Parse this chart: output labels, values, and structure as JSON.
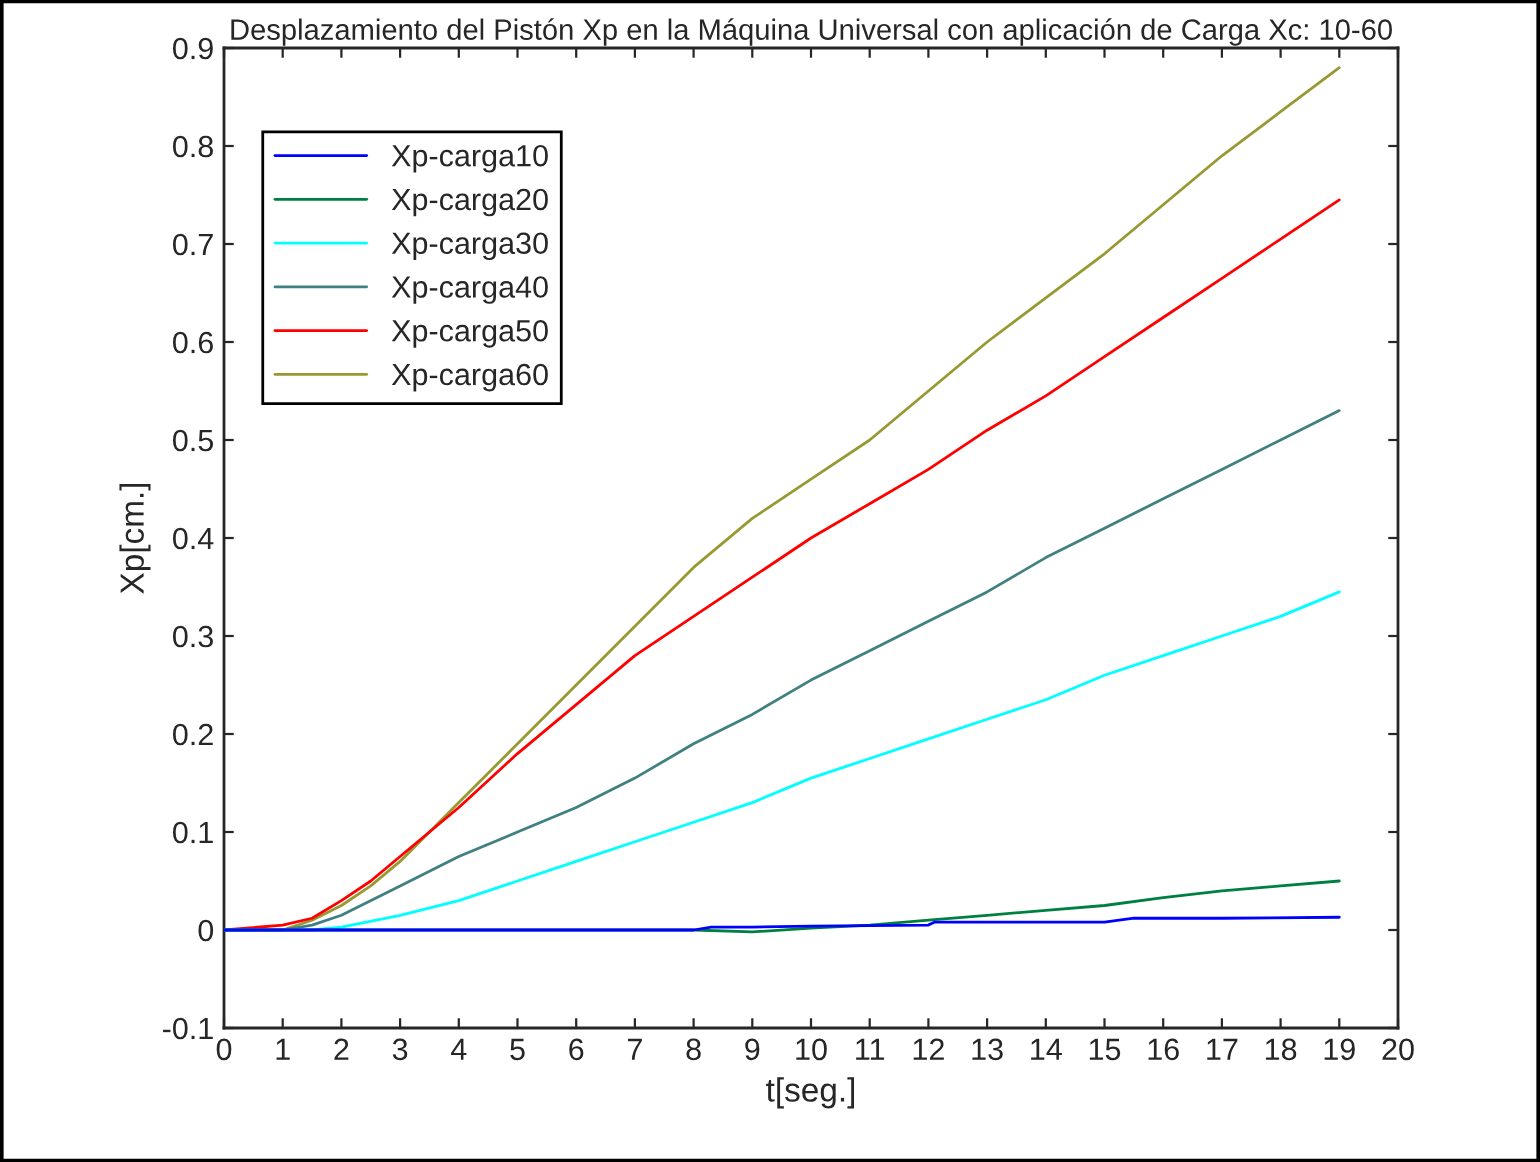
{
  "chart_data": {
    "type": "line",
    "title": "Desplazamiento del Pistón Xp en la Máquina Universal con aplicación de Carga Xc: 10-60",
    "xlabel": "t[seg.]",
    "ylabel": "Xp[cm.]",
    "xlim": [
      0,
      20
    ],
    "xticks": [
      0,
      1,
      2,
      3,
      4,
      5,
      6,
      7,
      8,
      9,
      10,
      11,
      12,
      13,
      14,
      15,
      16,
      17,
      18,
      19,
      20
    ],
    "ylim": [
      -0.1,
      0.9
    ],
    "yticks": [
      -0.1,
      0,
      0.1,
      0.2,
      0.3,
      0.4,
      0.5,
      0.6,
      0.7,
      0.8,
      0.9
    ],
    "grid": false,
    "legend": "top left",
    "marker": "none",
    "line_style": "solid",
    "series": [
      {
        "name": "Xp-carga10",
        "color": "#0000ff",
        "x": [
          0,
          2,
          4,
          6,
          8,
          8.3,
          9,
          10,
          12,
          12.1,
          15,
          15.5,
          17,
          19
        ],
        "values": [
          0,
          0,
          0,
          0,
          0,
          0.003,
          0.003,
          0.004,
          0.005,
          0.008,
          0.008,
          0.012,
          0.012,
          0.013
        ]
      },
      {
        "name": "Xp-carga20",
        "color": "#008040",
        "x": [
          0,
          2,
          4,
          6,
          8,
          9,
          10,
          11,
          12,
          13,
          14,
          15,
          16,
          17,
          18,
          19
        ],
        "values": [
          0,
          0,
          0,
          0,
          0,
          -0.002,
          0.002,
          0.005,
          0.01,
          0.015,
          0.02,
          0.025,
          0.033,
          0.04,
          0.045,
          0.05
        ]
      },
      {
        "name": "Xp-carga30",
        "color": "#00ffff",
        "x": [
          0,
          1,
          1.5,
          2,
          3,
          4,
          5,
          6,
          7,
          8,
          9,
          10,
          11,
          12,
          13,
          14,
          15,
          16,
          17,
          18,
          19
        ],
        "values": [
          0,
          0,
          0,
          0.003,
          0.015,
          0.03,
          0.05,
          0.07,
          0.09,
          0.11,
          0.13,
          0.155,
          0.175,
          0.195,
          0.215,
          0.235,
          0.26,
          0.28,
          0.3,
          0.32,
          0.345
        ]
      },
      {
        "name": "Xp-carga40",
        "color": "#408080",
        "x": [
          0,
          1,
          1.5,
          2,
          3,
          4,
          5,
          6,
          7,
          8,
          9,
          10,
          11,
          12,
          13,
          14,
          15,
          16,
          17,
          18,
          19
        ],
        "values": [
          0,
          0,
          0.005,
          0.015,
          0.045,
          0.075,
          0.1,
          0.125,
          0.155,
          0.19,
          0.22,
          0.255,
          0.285,
          0.315,
          0.345,
          0.38,
          0.41,
          0.44,
          0.47,
          0.5,
          0.53
        ]
      },
      {
        "name": "Xp-carga50",
        "color": "#ff0000",
        "x": [
          0,
          1,
          1.5,
          2,
          2.5,
          3,
          3.5,
          4,
          5,
          6,
          7,
          8,
          9,
          10,
          11,
          12,
          13,
          14,
          15,
          16,
          17,
          18,
          19
        ],
        "values": [
          0,
          0.005,
          0.012,
          0.03,
          0.05,
          0.075,
          0.1,
          0.125,
          0.18,
          0.23,
          0.28,
          0.32,
          0.36,
          0.4,
          0.435,
          0.47,
          0.51,
          0.545,
          0.585,
          0.625,
          0.665,
          0.705,
          0.745
        ]
      },
      {
        "name": "Xp-carga60",
        "color": "#999933",
        "x": [
          0,
          1,
          1.5,
          2,
          2.5,
          3,
          3.5,
          4,
          5,
          6,
          7,
          8,
          9,
          10,
          11,
          12,
          13,
          14,
          15,
          16,
          17,
          18,
          19
        ],
        "values": [
          0,
          0,
          0.01,
          0.025,
          0.045,
          0.07,
          0.1,
          0.13,
          0.19,
          0.25,
          0.31,
          0.37,
          0.42,
          0.46,
          0.5,
          0.55,
          0.6,
          0.645,
          0.69,
          0.74,
          0.79,
          0.835,
          0.88
        ]
      }
    ]
  }
}
